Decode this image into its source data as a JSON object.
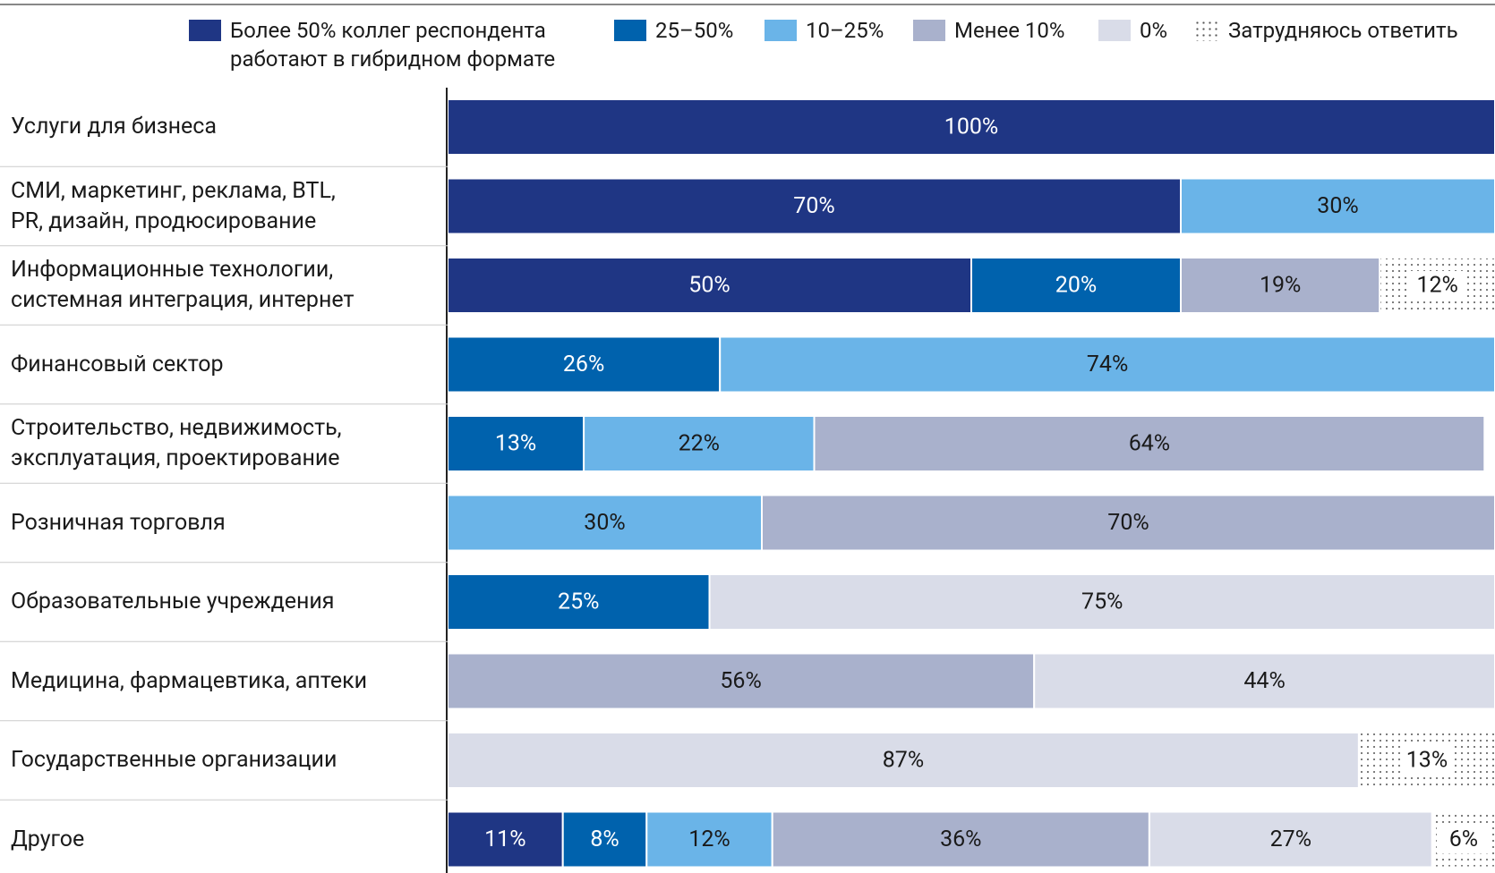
{
  "chart_data": {
    "type": "stacked_barh",
    "categories": [
      "Услуги для бизнеса",
      "СМИ, маркетинг, реклама, BTL,\nPR, дизайн, продюсирование",
      "Информационные технологии,\nсистемная интеграция, интернет",
      "Финансовый сектор",
      "Строительство, недвижимость,\nэксплуатация, проектирование",
      "Розничная торговля",
      "Образовательные учреждения",
      "Медицина, фармацевтика, аптеки",
      "Государственные организации",
      "Другое"
    ],
    "xlim": [
      0,
      100
    ],
    "series": [
      {
        "name": "Более 50% коллег респондента\nработают в гибридном формате",
        "color": "#1f3684",
        "values": [
          100,
          70,
          50,
          null,
          null,
          null,
          null,
          null,
          null,
          11
        ],
        "value_labels": [
          "100%",
          "70%",
          "50%",
          null,
          null,
          null,
          null,
          null,
          null,
          "11%"
        ]
      },
      {
        "name": "25–50%",
        "color": "#0062ad",
        "values": [
          null,
          null,
          20,
          26,
          13,
          null,
          25,
          null,
          null,
          8
        ],
        "value_labels": [
          null,
          null,
          "20%",
          "26%",
          "13%",
          null,
          "25%",
          null,
          null,
          "8%"
        ]
      },
      {
        "name": "10–25%",
        "color": "#6ab4e8",
        "values": [
          null,
          30,
          null,
          74,
          22,
          30,
          null,
          null,
          null,
          12
        ],
        "value_labels": [
          null,
          "30%",
          null,
          "74%",
          "22%",
          "30%",
          null,
          null,
          null,
          "12%"
        ]
      },
      {
        "name": "Менее 10%",
        "color": "#a9b1cc",
        "values": [
          null,
          null,
          19,
          null,
          64,
          70,
          null,
          56,
          null,
          36
        ],
        "value_labels": [
          null,
          null,
          "19%",
          null,
          "64%",
          "70%",
          null,
          "56%",
          null,
          "36%"
        ]
      },
      {
        "name": "0%",
        "color": "#d9dce8",
        "values": [
          null,
          null,
          null,
          null,
          null,
          null,
          75,
          44,
          87,
          27
        ],
        "value_labels": [
          null,
          null,
          null,
          null,
          null,
          null,
          "75%",
          "44%",
          "87%",
          "27%"
        ]
      },
      {
        "name": "Затрудняюсь ответить",
        "color": "dotted",
        "values": [
          null,
          null,
          12,
          null,
          null,
          null,
          null,
          null,
          13,
          6
        ],
        "value_labels": [
          null,
          null,
          "12%",
          null,
          null,
          null,
          null,
          null,
          "13%",
          "6%"
        ]
      }
    ]
  }
}
